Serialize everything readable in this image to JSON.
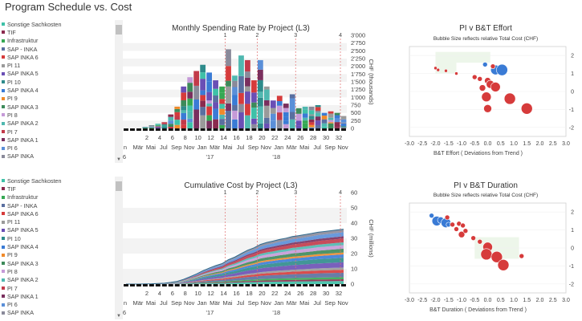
{
  "page_title": "Program Schedule vs. Cost",
  "legend_items": [
    {
      "label": "Sonstige Sachkosten",
      "color": "#3ec1a8"
    },
    {
      "label": "TIF",
      "color": "#8b2a4e"
    },
    {
      "label": "Infrastruktur",
      "color": "#35a853"
    },
    {
      "label": "SAP - INKA",
      "color": "#5a6fa0"
    },
    {
      "label": "SAP INKA 6",
      "color": "#d63b3b"
    },
    {
      "label": "PI 11",
      "color": "#9a9a9a"
    },
    {
      "label": "SAP INKA 5",
      "color": "#6a4fb5"
    },
    {
      "label": "PI 10",
      "color": "#2e8b8b"
    },
    {
      "label": "SAP INKA 4",
      "color": "#3a7bd5"
    },
    {
      "label": "PI 9",
      "color": "#f08a2a"
    },
    {
      "label": "SAP INKA 3",
      "color": "#3d8a5a"
    },
    {
      "label": "PI 8",
      "color": "#c59ad8"
    },
    {
      "label": "SAP INKA 2",
      "color": "#4fb8b0"
    },
    {
      "label": "PI 7",
      "color": "#c23a4a"
    },
    {
      "label": "SAP INKA 1",
      "color": "#7a2f5e"
    },
    {
      "label": "PI 6",
      "color": "#5a8fd8"
    },
    {
      "label": "SAP INKA",
      "color": "#8a8a9a"
    }
  ],
  "milestones": [
    "1",
    "2",
    "3",
    "4"
  ],
  "x_tick_labels": [
    "n",
    "Mär",
    "Mai",
    "Jul",
    "Sep",
    "Nov",
    "Jan",
    "Mär",
    "Mai",
    "Jul",
    "Sep",
    "Nov",
    "Jan",
    "Mär",
    "Mai",
    "Jul",
    "Sep",
    "Nov"
  ],
  "x_number_labels": [
    "2",
    "4",
    "6",
    "8",
    "10",
    "12",
    "14",
    "16",
    "18",
    "20",
    "22",
    "24",
    "26",
    "28",
    "30",
    "32"
  ],
  "x_year_labels": [
    "6",
    "'17",
    "'18"
  ],
  "scatter_x_ticks": [
    "-3.0",
    "-2.5",
    "-2.0",
    "-1.5",
    "-1.0",
    "-0.5",
    "0.0",
    "0.5",
    "1.0",
    "1.5",
    "2.0",
    "2.5",
    "3.0"
  ],
  "chart_data": [
    {
      "type": "bar",
      "title": "Monthly Spending Rate by Project  (L3)",
      "ylabel": "CHF (thousands)",
      "ylim": [
        0,
        3000
      ],
      "y_ticks": [
        "0",
        "250",
        "500",
        "750",
        "1'000",
        "1'250",
        "1'500",
        "1'750",
        "2'000",
        "2'250",
        "2'500",
        "2'750",
        "3'000"
      ],
      "y_tick_values": [
        0,
        250,
        500,
        750,
        1000,
        1250,
        1500,
        1750,
        2000,
        2250,
        2500,
        2750,
        3000
      ],
      "periods": 35,
      "milestone_positions": [
        16,
        21,
        27,
        34
      ],
      "totals": [
        0,
        0,
        0,
        50,
        100,
        150,
        200,
        450,
        700,
        1350,
        1650,
        1850,
        2050,
        1800,
        1550,
        1350,
        2550,
        1700,
        2350,
        2200,
        1550,
        2200,
        1350,
        900,
        1050,
        800,
        1100,
        650,
        700,
        700,
        750,
        500,
        550,
        500,
        400
      ]
    },
    {
      "type": "area",
      "title": "Cumulative Cost by Project  (L3)",
      "ylabel": "CHF (millions)",
      "ylim": [
        0,
        60
      ],
      "y_ticks": [
        "0",
        "10",
        "20",
        "30",
        "40",
        "50",
        "60"
      ],
      "y_tick_values": [
        0,
        10,
        20,
        30,
        40,
        50,
        60
      ],
      "periods": 35,
      "milestone_positions": [
        16,
        21,
        27,
        34
      ],
      "totals": [
        0,
        0,
        0,
        0.1,
        0.2,
        0.4,
        0.6,
        1.1,
        1.8,
        3.1,
        4.8,
        6.6,
        8.7,
        10.5,
        12.1,
        13.4,
        16.0,
        17.7,
        20.0,
        22.2,
        23.8,
        26.0,
        27.3,
        28.2,
        29.3,
        30.1,
        31.2,
        31.8,
        32.5,
        33.2,
        34.0,
        34.5,
        35.0,
        35.5,
        36.0
      ]
    },
    {
      "type": "scatter",
      "title": "PI v B&T Effort",
      "subtitle": "Bubble Size reflects relative Total Cost (CHF)",
      "xlabel": "B&T Effort ( Deviations from Trend )",
      "xlim": [
        -3,
        3
      ],
      "ylim": [
        -2.5,
        2.5
      ],
      "y_ticks": [
        "2",
        "1",
        "0",
        "-1",
        "-2"
      ],
      "y_tick_values": [
        2,
        1,
        0,
        -1,
        -2
      ],
      "points": [
        {
          "x": -1.9,
          "y": 1.2,
          "size": 2,
          "color": "#d63b3b"
        },
        {
          "x": -2.0,
          "y": 1.3,
          "size": 2,
          "color": "#d63b3b"
        },
        {
          "x": -1.6,
          "y": 1.15,
          "size": 2,
          "color": "#d63b3b"
        },
        {
          "x": -1.2,
          "y": 1.0,
          "size": 2,
          "color": "#d63b3b"
        },
        {
          "x": -0.1,
          "y": 1.5,
          "size": 3,
          "color": "#3a7bd5"
        },
        {
          "x": 0.3,
          "y": 1.2,
          "size": 6,
          "color": "#3a7bd5"
        },
        {
          "x": 0.55,
          "y": 1.2,
          "size": 7,
          "color": "#3a7bd5"
        },
        {
          "x": 0.2,
          "y": 1.4,
          "size": 3,
          "color": "#d63b3b"
        },
        {
          "x": -0.5,
          "y": 0.8,
          "size": 3,
          "color": "#d63b3b"
        },
        {
          "x": -0.3,
          "y": 0.7,
          "size": 3,
          "color": "#d63b3b"
        },
        {
          "x": 0.0,
          "y": 0.6,
          "size": 4,
          "color": "#d63b3b"
        },
        {
          "x": 0.1,
          "y": 0.4,
          "size": 5,
          "color": "#d63b3b"
        },
        {
          "x": -0.2,
          "y": 0.2,
          "size": 4,
          "color": "#d63b3b"
        },
        {
          "x": 0.3,
          "y": 0.25,
          "size": 6,
          "color": "#d63b3b"
        },
        {
          "x": -0.05,
          "y": -0.3,
          "size": 6,
          "color": "#d63b3b"
        },
        {
          "x": 0.85,
          "y": -0.4,
          "size": 7,
          "color": "#d63b3b"
        },
        {
          "x": 1.5,
          "y": -0.95,
          "size": 7,
          "color": "#d63b3b"
        },
        {
          "x": 0.0,
          "y": -0.95,
          "size": 5,
          "color": "#d63b3b"
        }
      ]
    },
    {
      "type": "scatter",
      "title": "PI v B&T Duration",
      "subtitle": "Bubble Size reflects relative Total Cost (CHF)",
      "xlabel": "B&T Duration ( Deviations from Trend )",
      "xlim": [
        -3,
        3
      ],
      "ylim": [
        -2.5,
        2.5
      ],
      "y_ticks": [
        "2",
        "1",
        "0",
        "-1",
        "-2"
      ],
      "y_tick_values": [
        2,
        1,
        0,
        -1,
        -2
      ],
      "points": [
        {
          "x": -2.15,
          "y": 1.8,
          "size": 3,
          "color": "#3a7bd5"
        },
        {
          "x": -1.95,
          "y": 1.5,
          "size": 6,
          "color": "#3a7bd5"
        },
        {
          "x": -1.8,
          "y": 1.55,
          "size": 4,
          "color": "#3a7bd5"
        },
        {
          "x": -1.6,
          "y": 1.4,
          "size": 6,
          "color": "#3a7bd5"
        },
        {
          "x": -1.5,
          "y": 1.3,
          "size": 3,
          "color": "#3a7bd5"
        },
        {
          "x": -1.55,
          "y": 1.7,
          "size": 3,
          "color": "#d63b3b"
        },
        {
          "x": -1.35,
          "y": 1.3,
          "size": 3,
          "color": "#d63b3b"
        },
        {
          "x": -1.2,
          "y": 1.05,
          "size": 3,
          "color": "#d63b3b"
        },
        {
          "x": -1.1,
          "y": 1.35,
          "size": 3,
          "color": "#d63b3b"
        },
        {
          "x": -0.95,
          "y": 1.25,
          "size": 3,
          "color": "#d63b3b"
        },
        {
          "x": -1.0,
          "y": 0.75,
          "size": 4,
          "color": "#d63b3b"
        },
        {
          "x": -0.85,
          "y": 0.95,
          "size": 3,
          "color": "#d63b3b"
        },
        {
          "x": -0.55,
          "y": 0.55,
          "size": 3,
          "color": "#d63b3b"
        },
        {
          "x": -0.3,
          "y": 0.35,
          "size": 3,
          "color": "#d63b3b"
        },
        {
          "x": 0.0,
          "y": 0.05,
          "size": 6,
          "color": "#d63b3b"
        },
        {
          "x": -0.05,
          "y": -0.35,
          "size": 7,
          "color": "#d63b3b"
        },
        {
          "x": 0.35,
          "y": -0.5,
          "size": 7,
          "color": "#d63b3b"
        },
        {
          "x": 0.6,
          "y": -0.95,
          "size": 7,
          "color": "#d63b3b"
        },
        {
          "x": 1.3,
          "y": -0.45,
          "size": 3,
          "color": "#d63b3b"
        }
      ]
    }
  ]
}
